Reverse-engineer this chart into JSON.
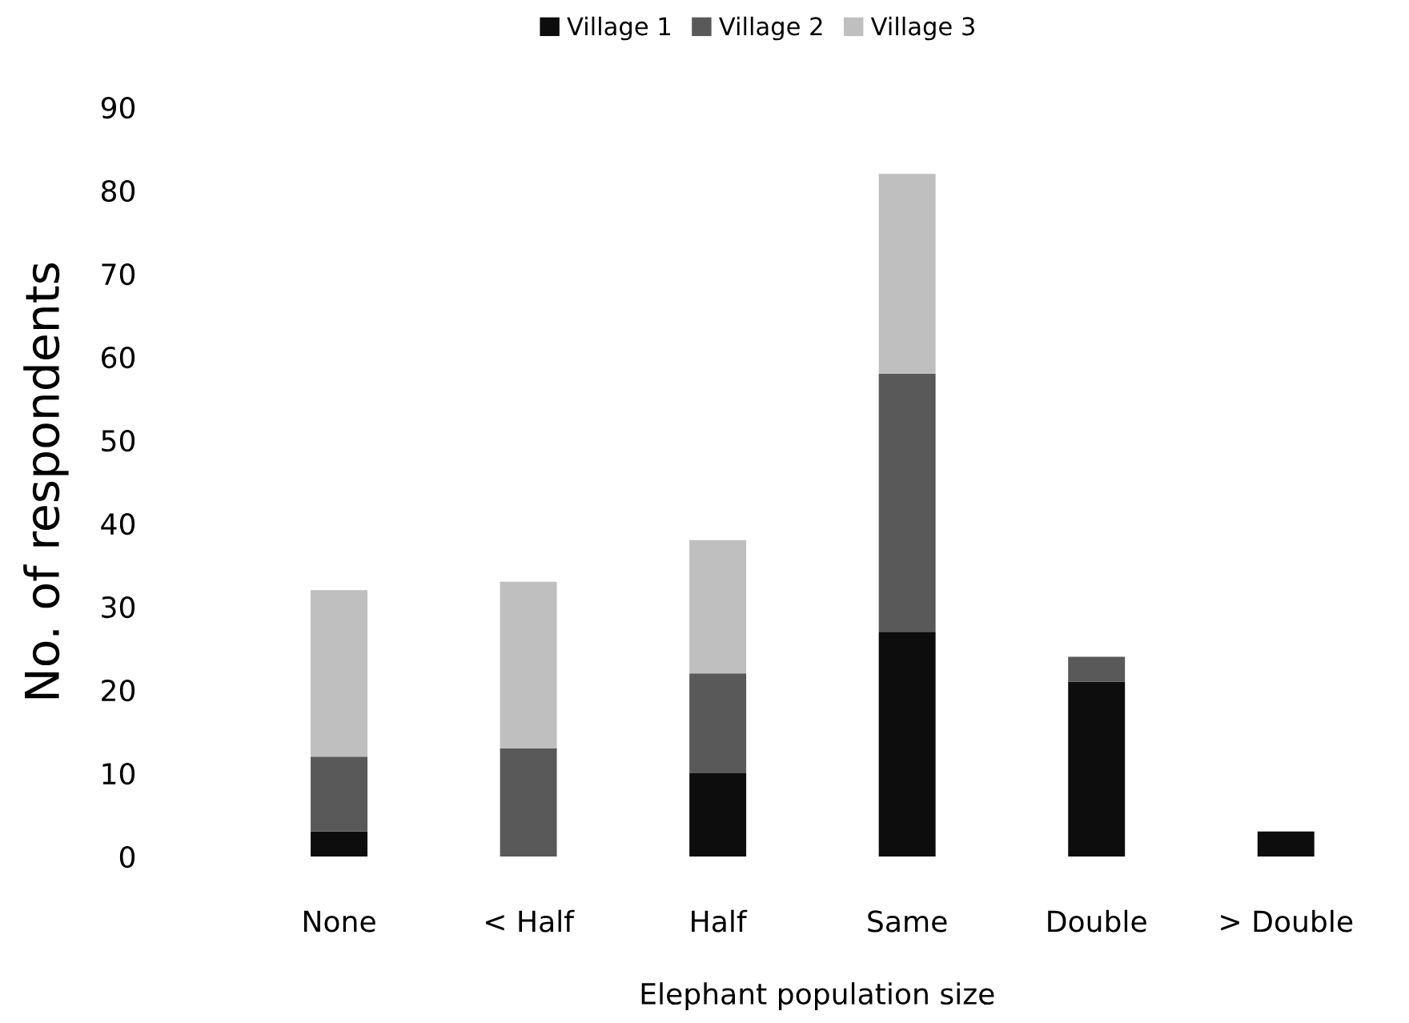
{
  "chart_data": {
    "type": "bar",
    "stacked": true,
    "xlabel": "Elephant population size",
    "ylabel": "No. of respondents",
    "categories": [
      "None",
      "< Half",
      "Half",
      "Same",
      "Double",
      "> Double"
    ],
    "series": [
      {
        "name": "Village 1",
        "color": "#0d0d0d",
        "values": [
          3,
          0,
          10,
          27,
          21,
          3
        ]
      },
      {
        "name": "Village 2",
        "color": "#595959",
        "values": [
          9,
          13,
          12,
          31,
          3,
          0
        ]
      },
      {
        "name": "Village 3",
        "color": "#bfbfbf",
        "values": [
          20,
          20,
          16,
          24,
          0,
          0
        ]
      }
    ],
    "ylim": [
      0,
      90
    ],
    "yticks": [
      0,
      10,
      20,
      30,
      40,
      50,
      60,
      70,
      80,
      90
    ],
    "grid": false,
    "legend": "top"
  }
}
